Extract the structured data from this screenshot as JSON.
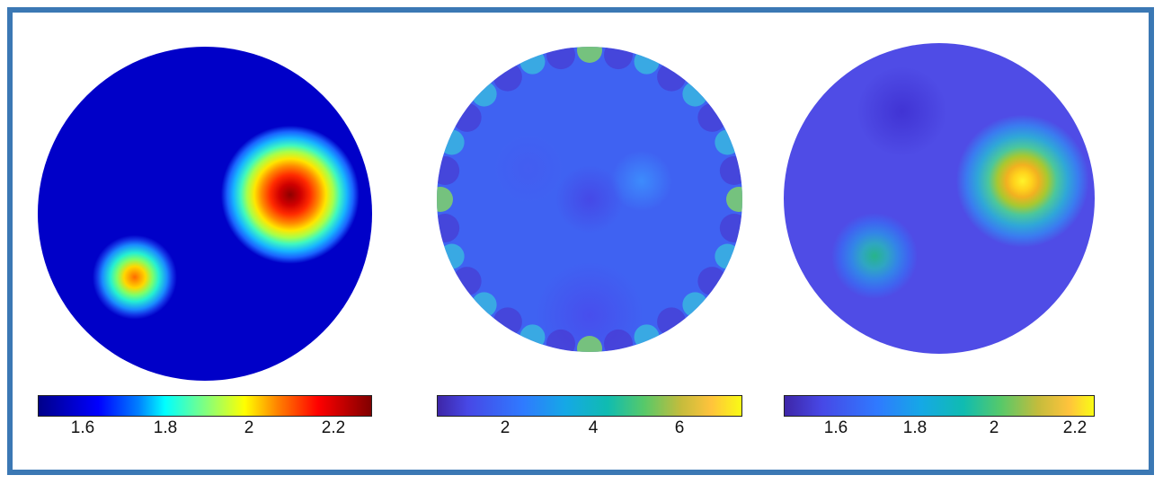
{
  "panels": [
    {
      "colorbar": {
        "colormap": "jet",
        "ticks": [
          "1.6",
          "1.8",
          "2",
          "2.2"
        ]
      }
    },
    {
      "colorbar": {
        "colormap": "parula",
        "ticks": [
          "2",
          "4",
          "6"
        ]
      }
    },
    {
      "colorbar": {
        "colormap": "parula",
        "ticks": [
          "1.6",
          "1.8",
          "2",
          "2.2"
        ]
      }
    }
  ],
  "colors": {
    "frame": "#3b78b4",
    "background": "#ffffff"
  }
}
